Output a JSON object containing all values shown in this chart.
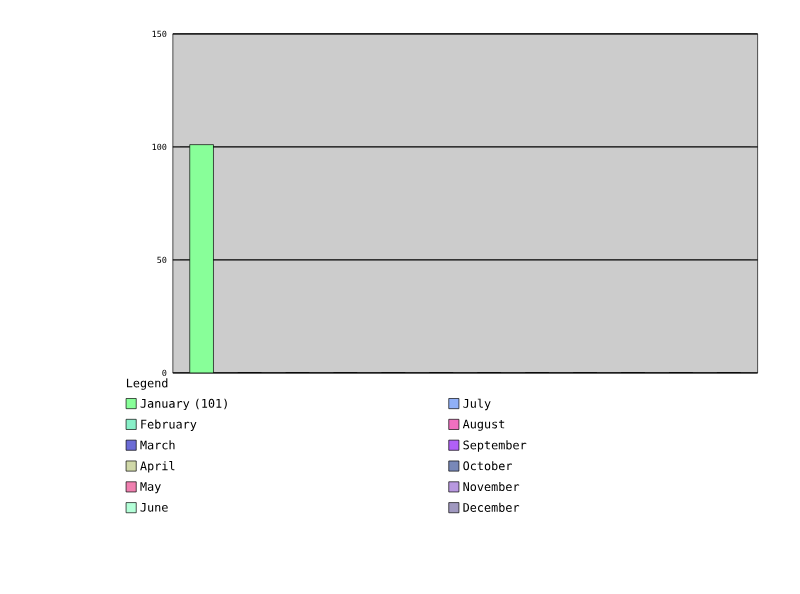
{
  "chart_data": {
    "type": "bar",
    "legend_title": "Legend",
    "categories": [
      null,
      null,
      null,
      null,
      null,
      null,
      null,
      null,
      null,
      null,
      null,
      null
    ],
    "series": [
      {
        "name": "January (101)",
        "color": "#88ff99",
        "values": [
          101,
          null,
          null,
          null,
          null,
          null,
          null,
          null,
          null,
          null,
          null,
          null
        ]
      },
      {
        "name": "February",
        "color": "#88f0c8",
        "values": [
          null,
          0,
          null,
          null,
          null,
          null,
          null,
          null,
          null,
          null,
          null,
          null
        ]
      },
      {
        "name": "March",
        "color": "#6b6bd6",
        "values": [
          null,
          null,
          0,
          null,
          null,
          null,
          null,
          null,
          null,
          null,
          null,
          null
        ]
      },
      {
        "name": "April",
        "color": "#d0d8a8",
        "values": [
          null,
          null,
          null,
          0,
          null,
          null,
          null,
          null,
          null,
          null,
          null,
          null
        ]
      },
      {
        "name": "May",
        "color": "#f080b0",
        "values": [
          null,
          null,
          null,
          null,
          0,
          null,
          null,
          null,
          null,
          null,
          null,
          null
        ]
      },
      {
        "name": "June",
        "color": "#b4ffd8",
        "values": [
          null,
          null,
          null,
          null,
          null,
          0,
          null,
          null,
          null,
          null,
          null,
          null
        ]
      },
      {
        "name": "July",
        "color": "#90b0f8",
        "values": [
          null,
          null,
          null,
          null,
          null,
          null,
          0,
          null,
          null,
          null,
          null,
          null
        ]
      },
      {
        "name": "August",
        "color": "#f070c0",
        "values": [
          null,
          null,
          null,
          null,
          null,
          null,
          null,
          0,
          null,
          null,
          null,
          null
        ]
      },
      {
        "name": "September",
        "color": "#b060f8",
        "values": [
          null,
          null,
          null,
          null,
          null,
          null,
          null,
          null,
          0,
          null,
          null,
          null
        ]
      },
      {
        "name": "October",
        "color": "#7888b8",
        "values": [
          null,
          null,
          null,
          null,
          null,
          null,
          null,
          null,
          null,
          0,
          null,
          null
        ]
      },
      {
        "name": "November",
        "color": "#b898e0",
        "values": [
          null,
          null,
          null,
          null,
          null,
          null,
          null,
          null,
          null,
          null,
          0,
          null
        ]
      },
      {
        "name": "December",
        "color": "#a098c0",
        "values": [
          null,
          null,
          null,
          null,
          null,
          null,
          null,
          null,
          null,
          null,
          null,
          0
        ]
      }
    ],
    "ylim": [
      0,
      150
    ],
    "yticks": [
      0,
      50,
      100,
      150
    ],
    "grid": "y",
    "legend": "bottom"
  }
}
